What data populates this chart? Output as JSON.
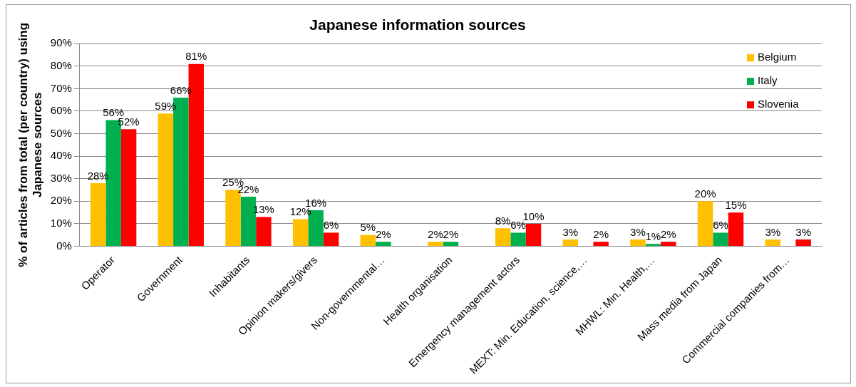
{
  "chart_data": {
    "type": "bar",
    "title": "Japanese information sources",
    "ylabel": "% of articles from total (per country) using Japanese sources",
    "categories": [
      "Operator",
      "Government",
      "Inhabitants",
      "Opinion makers/givers",
      "Non-governmental…",
      "Health organisation",
      "Emergency management actors",
      "MEXT: Min. Education, science,…",
      "MHWL: Min. Health,…",
      "Mass media from Japan",
      "Commercial companies from…"
    ],
    "series": [
      {
        "name": "Belgium",
        "color": "#ffc000",
        "values": [
          28,
          59,
          25,
          12,
          5,
          2,
          8,
          3,
          3,
          20,
          3
        ],
        "value_labels": [
          "28%",
          "59%",
          "25%",
          "12%",
          "5%",
          "2%",
          "8%",
          "3%",
          "3%",
          "20%",
          "3%"
        ]
      },
      {
        "name": "Italy",
        "color": "#00b050",
        "values": [
          56,
          66,
          22,
          16,
          2,
          2,
          6,
          null,
          1,
          6,
          null
        ],
        "value_labels": [
          "56%",
          "66%",
          "22%",
          "16%",
          "2%",
          "2%",
          "6%",
          null,
          "1%",
          "6%",
          null
        ]
      },
      {
        "name": "Slovenia",
        "color": "#ff0000",
        "values": [
          52,
          81,
          13,
          6,
          null,
          null,
          10,
          2,
          2,
          15,
          3
        ],
        "value_labels": [
          "52%",
          "81%",
          "13%",
          "6%",
          null,
          null,
          "10%",
          "2%",
          "2%",
          "15%",
          "3%"
        ]
      }
    ],
    "ylim": [
      0,
      90
    ],
    "yticks": [
      {
        "value": 0,
        "label": "0%"
      },
      {
        "value": 10,
        "label": "10%"
      },
      {
        "value": 20,
        "label": "20%"
      },
      {
        "value": 30,
        "label": "30%"
      },
      {
        "value": 40,
        "label": "40%"
      },
      {
        "value": 50,
        "label": "50%"
      },
      {
        "value": 60,
        "label": "60%"
      },
      {
        "value": 70,
        "label": "70%"
      },
      {
        "value": 80,
        "label": "80%"
      },
      {
        "value": 90,
        "label": "90%"
      }
    ],
    "grid": "y",
    "legend": "top right"
  }
}
